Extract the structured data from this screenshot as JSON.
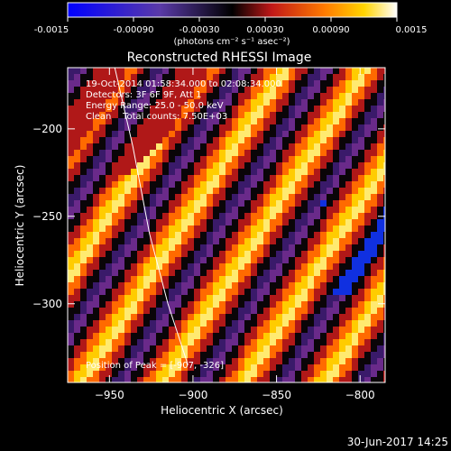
{
  "colorbar": {
    "ticks": [
      "-0.0015",
      "-0.00090",
      "-0.00030",
      "0.00030",
      "0.00090",
      "0.0015"
    ],
    "unit_label": "(photons cm⁻² s⁻¹ asec⁻²)"
  },
  "footer": {
    "timestamp": "30-Jun-2017 14:25"
  },
  "chart_data": {
    "type": "heatmap",
    "title": "Reconstructed RHESSI Image",
    "xlabel": "Heliocentric X (arcsec)",
    "ylabel": "Heliocentric Y (arcsec)",
    "xlim": [
      -975,
      -785
    ],
    "ylim": [
      -345,
      -165
    ],
    "xticks": [
      -950,
      -900,
      -850,
      -800
    ],
    "yticks": [
      -200,
      -250,
      -300
    ],
    "colorscale_range": [
      -0.0015,
      0.0015
    ],
    "colormap": "blue-purple-red-orange-yellow-white",
    "annotations": [
      "19-Oct-2014 01:58:34.000 to 02:08:34.000",
      "Detectors: 3F 6F 9F, Att 1",
      "Energy Range: 25.0 - 50.0 keV",
      "Clean    Total counts: 7.50E+03"
    ],
    "position_note": "Position of Peak = [-907, -326]",
    "peak": {
      "x": -907,
      "y": -326
    },
    "limb_curve": [
      {
        "x": -948,
        "y": -160
      },
      {
        "x": -936,
        "y": -210
      },
      {
        "x": -926,
        "y": -260
      },
      {
        "x": -915,
        "y": -300
      },
      {
        "x": -903,
        "y": -335
      }
    ]
  }
}
